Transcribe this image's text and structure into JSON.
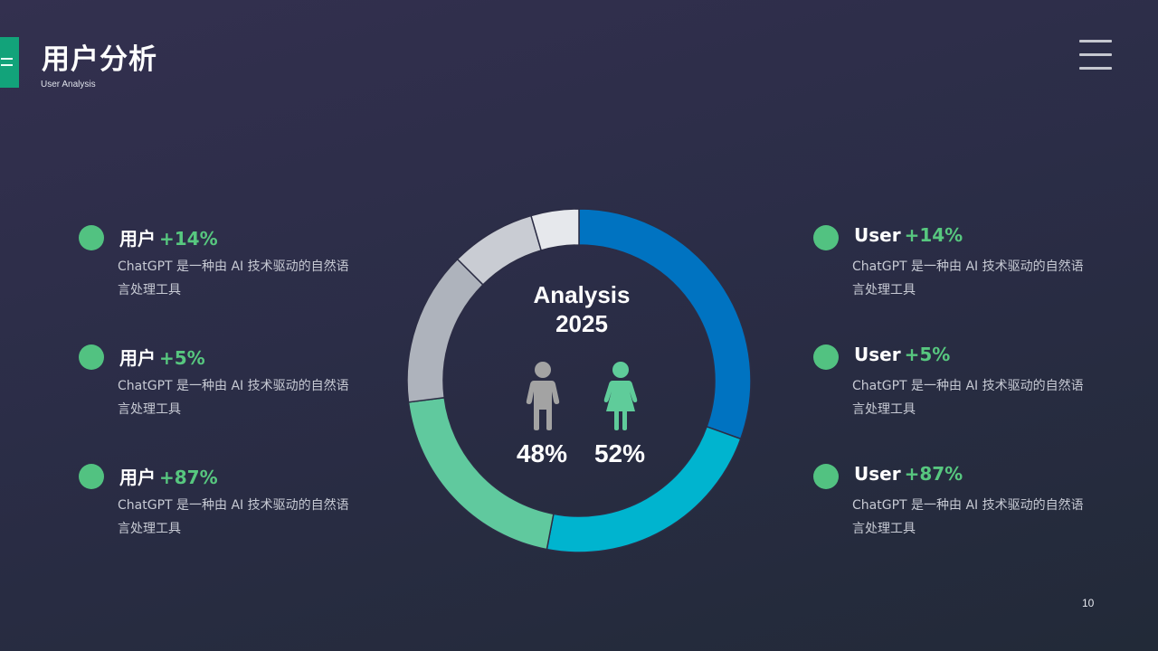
{
  "header": {
    "title": "用户分析",
    "subtitle": "User Analysis"
  },
  "colors": {
    "accent_green": "#57c77f",
    "tab_green": "#12a37a",
    "ring_blue": "#0073c1",
    "ring_cyan": "#00b4cf",
    "ring_mint": "#60c99e",
    "ring_gray_1": "#aeb3bc",
    "ring_gray_2": "#c9ccd3",
    "ring_gray_3": "#e6e8ec"
  },
  "left_items": [
    {
      "label": "用户",
      "change": "+14%",
      "desc": "ChatGPT 是一种由 AI 技术驱动的自然语言处理工具"
    },
    {
      "label": "用户",
      "change": "+5%",
      "desc": "ChatGPT 是一种由 AI 技术驱动的自然语言处理工具"
    },
    {
      "label": "用户",
      "change": "+87%",
      "desc": "ChatGPT 是一种由 AI 技术驱动的自然语言处理工具"
    }
  ],
  "right_items": [
    {
      "label": "User",
      "change": "+14%",
      "desc": "ChatGPT 是一种由 AI 技术驱动的自然语言处理工具"
    },
    {
      "label": "User",
      "change": "+5%",
      "desc": "ChatGPT 是一种由 AI 技术驱动的自然语言处理工具"
    },
    {
      "label": "User",
      "change": "+87%",
      "desc": "ChatGPT 是一种由 AI 技术驱动的自然语言处理工具"
    }
  ],
  "center": {
    "title_line1": "Analysis",
    "title_line2": "2025",
    "male_percent": "48%",
    "female_percent": "52%",
    "male_color": "#a3a3a3",
    "female_color": "#5fcc9a"
  },
  "donut_segments": [
    {
      "share": 0.305,
      "color": "#0073c1"
    },
    {
      "share": 0.225,
      "color": "#00b4cf"
    },
    {
      "share": 0.2,
      "color": "#60c99e"
    },
    {
      "share": 0.145,
      "color": "#aeb3bc"
    },
    {
      "share": 0.08,
      "color": "#c9ccd3"
    },
    {
      "share": 0.045,
      "color": "#e6e8ec"
    }
  ],
  "page_number": "10"
}
